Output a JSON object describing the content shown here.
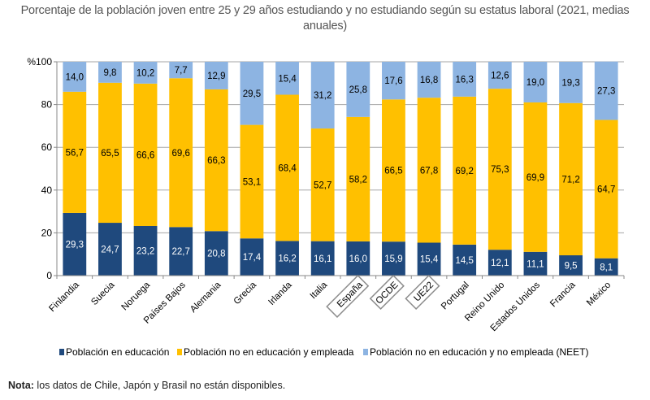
{
  "title": "Porcentaje de la población joven entre 25 y 29 años estudiando y no estudiando según su estatus laboral (2021, medias anuales)",
  "note": {
    "label": "Nota:",
    "text": " los datos de Chile, Japón y Brasil no están disponibles."
  },
  "chart_data": {
    "type": "bar",
    "stacked": true,
    "title": "Porcentaje de la población joven entre 25 y 29 años estudiando y no estudiando según su estatus laboral (2021, medias anuales)",
    "ylabel": "%",
    "xlabel": "",
    "ylim": [
      0,
      100
    ],
    "yticks": [
      0,
      20,
      40,
      60,
      80,
      100
    ],
    "grid": true,
    "legend_position": "bottom",
    "categories": [
      "Finlandia",
      "Suecia",
      "Noruega",
      "Países Bajos",
      "Alemania",
      "Grecia",
      "Irlanda",
      "Italia",
      "España",
      "OCDE",
      "UE22",
      "Portugal",
      "Reino Unido",
      "Estados Unidos",
      "Francia",
      "México"
    ],
    "boxed_categories": [
      "España",
      "OCDE",
      "UE22"
    ],
    "series": [
      {
        "name": "Población en educación",
        "color": "#1F497D",
        "label_color": "#ffffff",
        "values": [
          29.3,
          24.7,
          23.2,
          22.7,
          20.8,
          17.4,
          16.2,
          16.1,
          16.0,
          15.9,
          15.4,
          14.5,
          12.1,
          11.1,
          9.5,
          8.1
        ],
        "labels": [
          "29,3",
          "24,7",
          "23,2",
          "22,7",
          "20,8",
          "17,4",
          "16,2",
          "16,1",
          "16,0",
          "15,9",
          "15,4",
          "14,5",
          "12,1",
          "11,1",
          "9,5",
          "8,1"
        ]
      },
      {
        "name": "Población no en educación y empleada",
        "color": "#FFC000",
        "label_color": "#000000",
        "values": [
          56.7,
          65.5,
          66.6,
          69.6,
          66.3,
          53.1,
          68.4,
          52.7,
          58.2,
          66.5,
          67.8,
          69.2,
          75.3,
          69.9,
          71.2,
          64.7
        ],
        "labels": [
          "56,7",
          "65,5",
          "66,6",
          "69,6",
          "66,3",
          "53,1",
          "68,4",
          "52,7",
          "58,2",
          "66,5",
          "67,8",
          "69,2",
          "75,3",
          "69,9",
          "71,2",
          "64,7"
        ]
      },
      {
        "name": "Población no en educación y no empleada (NEET)",
        "color": "#8DB4E2",
        "label_color": "#000000",
        "values": [
          14.0,
          9.8,
          10.2,
          7.7,
          12.9,
          29.5,
          15.4,
          31.2,
          25.8,
          17.6,
          16.8,
          16.3,
          12.6,
          19.0,
          19.3,
          27.3
        ],
        "labels": [
          "14,0",
          "9,8",
          "10,2",
          "7,7",
          "12,9",
          "29,5",
          "15,4",
          "31,2",
          "25,8",
          "17,6",
          "16,8",
          "16,3",
          "12,6",
          "19,0",
          "19,3",
          "27,3"
        ]
      }
    ]
  }
}
